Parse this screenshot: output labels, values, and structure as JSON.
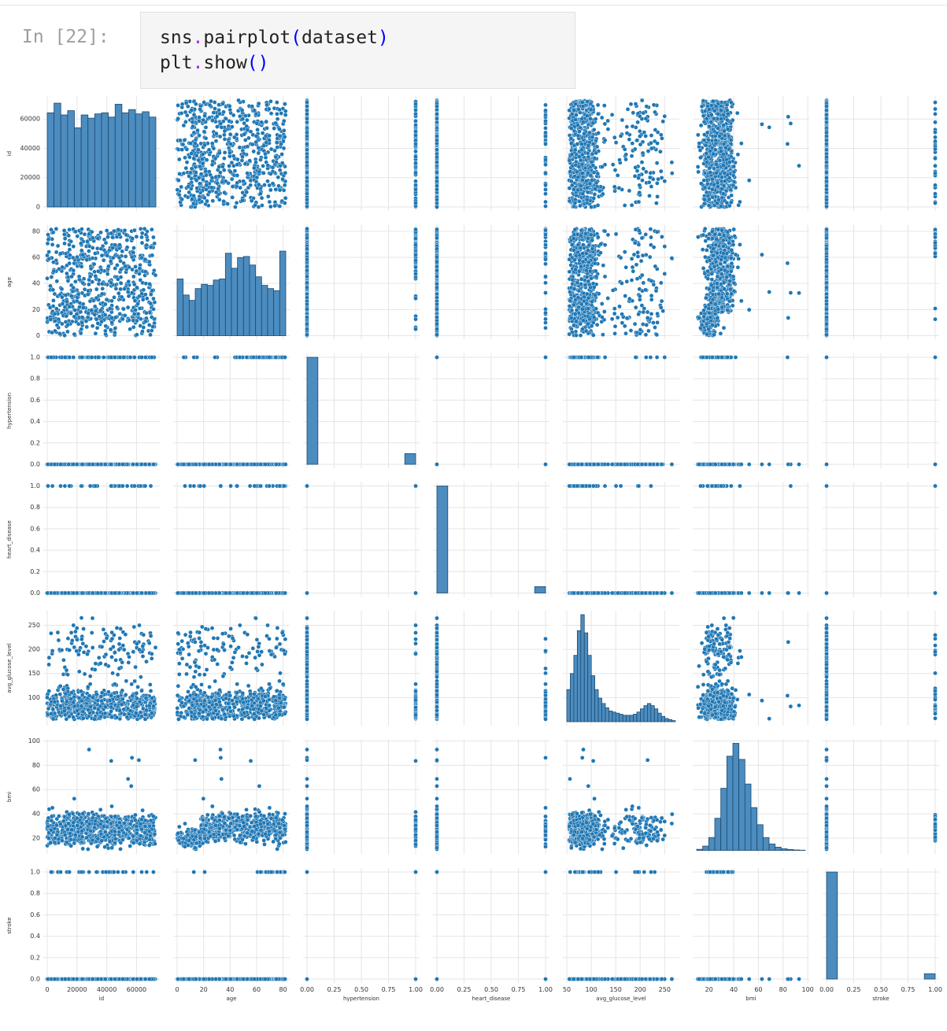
{
  "cell": {
    "prompt": "In [22]:",
    "line1": {
      "a": "sns",
      "dot": ".",
      "b": "pairplot",
      "open": "(",
      "arg": "dataset",
      "close": ")"
    },
    "line2": {
      "a": "plt",
      "dot": ".",
      "b": "show",
      "parens": "()"
    }
  },
  "colors": {
    "point": "#1f77b4",
    "point_edge": "#ffffff",
    "hist": "#4c8cbf",
    "hist_edge": "#1b4a70",
    "grid": "#e5e5e5"
  },
  "chart_data": {
    "type": "scatter",
    "variables": [
      "id",
      "age",
      "hypertension",
      "heart_disease",
      "avg_glucose_level",
      "bmi",
      "stroke"
    ],
    "axes": {
      "id": {
        "range": [
          0,
          73000
        ],
        "ticks": [
          0,
          20000,
          40000,
          60000
        ],
        "labels": [
          "0",
          "20000",
          "40000",
          "60000"
        ],
        "ylabels": [
          "0",
          "20000",
          "40000",
          "60000"
        ]
      },
      "age": {
        "range": [
          0,
          82
        ],
        "ticks": [
          0,
          20,
          40,
          60,
          80
        ],
        "labels": [
          "0",
          "20",
          "40",
          "60",
          "80"
        ],
        "ylabels": [
          "0",
          "20",
          "40",
          "60",
          "80"
        ]
      },
      "hypertension": {
        "range": [
          0,
          1
        ],
        "ticks": [
          0,
          0.25,
          0.5,
          0.75,
          1
        ],
        "labels": [
          "0.00",
          "0.25",
          "0.50",
          "0.75",
          "1.00"
        ],
        "yticks": [
          0,
          0.2,
          0.4,
          0.6,
          0.8,
          1.0
        ],
        "ylabels": [
          "0.0",
          "0.2",
          "0.4",
          "0.6",
          "0.8",
          "1.0"
        ]
      },
      "heart_disease": {
        "range": [
          0,
          1
        ],
        "ticks": [
          0,
          0.25,
          0.5,
          0.75,
          1
        ],
        "labels": [
          "0.00",
          "0.25",
          "0.50",
          "0.75",
          "1.00"
        ],
        "yticks": [
          0,
          0.2,
          0.4,
          0.6,
          0.8,
          1.0
        ],
        "ylabels": [
          "0.0",
          "0.2",
          "0.4",
          "0.6",
          "0.8",
          "1.0"
        ]
      },
      "avg_glucose_level": {
        "range": [
          50,
          272
        ],
        "ticks": [
          50,
          100,
          150,
          200,
          250
        ],
        "labels": [
          "50",
          "100",
          "150",
          "200",
          "250"
        ],
        "ylabels": [
          "100",
          "150",
          "200",
          "250"
        ],
        "yticks": [
          100,
          150,
          200,
          250
        ]
      },
      "bmi": {
        "range": [
          10,
          98
        ],
        "ticks": [
          20,
          40,
          60,
          80,
          100
        ],
        "labels": [
          "20",
          "40",
          "60",
          "80",
          "100"
        ],
        "yticks": [
          20,
          40,
          60,
          80,
          100
        ],
        "ylabels": [
          "20",
          "40",
          "60",
          "80",
          "100"
        ]
      },
      "stroke": {
        "range": [
          0,
          1
        ],
        "ticks": [
          0,
          0.25,
          0.5,
          0.75,
          1
        ],
        "labels": [
          "0.00",
          "0.25",
          "0.50",
          "0.75",
          "1.00"
        ],
        "yticks": [
          0,
          0.2,
          0.4,
          0.6,
          0.8,
          1.0
        ],
        "ylabels": [
          "0.0",
          "0.2",
          "0.4",
          "0.6",
          "0.8",
          "1.0"
        ]
      }
    },
    "histograms": {
      "id": [
        0.88,
        0.97,
        0.86,
        0.9,
        0.74,
        0.86,
        0.83,
        0.87,
        0.88,
        0.84,
        0.96,
        0.88,
        0.91,
        0.87,
        0.89,
        0.84
      ],
      "age": [
        0.53,
        0.38,
        0.33,
        0.44,
        0.48,
        0.47,
        0.52,
        0.53,
        0.77,
        0.63,
        0.73,
        0.74,
        0.66,
        0.55,
        0.47,
        0.44,
        0.42,
        0.79
      ],
      "hypertension": [
        1.0,
        0,
        0,
        0,
        0,
        0,
        0,
        0,
        0,
        0.1
      ],
      "heart_disease": [
        1.0,
        0,
        0,
        0,
        0,
        0,
        0,
        0,
        0,
        0.06
      ],
      "avg_glucose_level": [
        0.3,
        0.45,
        0.62,
        0.85,
        1.0,
        0.83,
        0.62,
        0.43,
        0.3,
        0.22,
        0.17,
        0.13,
        0.1,
        0.09,
        0.08,
        0.07,
        0.06,
        0.06,
        0.06,
        0.07,
        0.09,
        0.12,
        0.15,
        0.17,
        0.15,
        0.12,
        0.08,
        0.05,
        0.03,
        0.02,
        0.01
      ],
      "bmi": [
        0.01,
        0.04,
        0.12,
        0.3,
        0.58,
        0.88,
        1.0,
        0.85,
        0.62,
        0.4,
        0.24,
        0.12,
        0.06,
        0.03,
        0.015,
        0.008,
        0.004,
        0.002
      ],
      "stroke": [
        1.0,
        0,
        0,
        0,
        0,
        0,
        0,
        0,
        0,
        0.05
      ]
    }
  }
}
